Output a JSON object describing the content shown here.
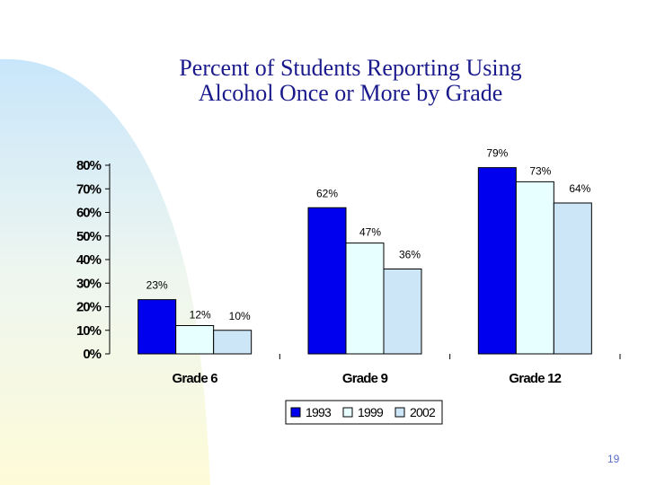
{
  "slide": {
    "title_line1": "Percent of Students Reporting Using",
    "title_line2": "Alcohol Once or More by Grade",
    "page_number": "19",
    "colors": {
      "title": "#1a1a8c",
      "page_number": "#5a6ec8"
    }
  },
  "chart_data": {
    "type": "bar",
    "title": "Percent of Students Reporting Using Alcohol Once or More by Grade",
    "xlabel": "",
    "ylabel": "",
    "categories": [
      "Grade 6",
      "Grade 9",
      "Grade 12"
    ],
    "series": [
      {
        "name": "1993",
        "values": [
          23,
          62,
          79
        ],
        "labels": [
          "23%",
          "62%",
          "79%"
        ],
        "color": "#0000ee"
      },
      {
        "name": "1999",
        "values": [
          12,
          47,
          73
        ],
        "labels": [
          "12%",
          "47%",
          "73%"
        ],
        "color": "#e8ffff"
      },
      {
        "name": "2002",
        "values": [
          10,
          36,
          64
        ],
        "labels": [
          "10%",
          "36%",
          "64%"
        ],
        "color": "#cce6f8"
      }
    ],
    "ylim": [
      0,
      80
    ],
    "yticks": [
      0,
      10,
      20,
      30,
      40,
      50,
      60,
      70,
      80
    ],
    "ytick_labels": [
      "0%",
      "10%",
      "20%",
      "30%",
      "40%",
      "50%",
      "60%",
      "70%",
      "80%"
    ],
    "grid": false,
    "legend_position": "bottom"
  }
}
